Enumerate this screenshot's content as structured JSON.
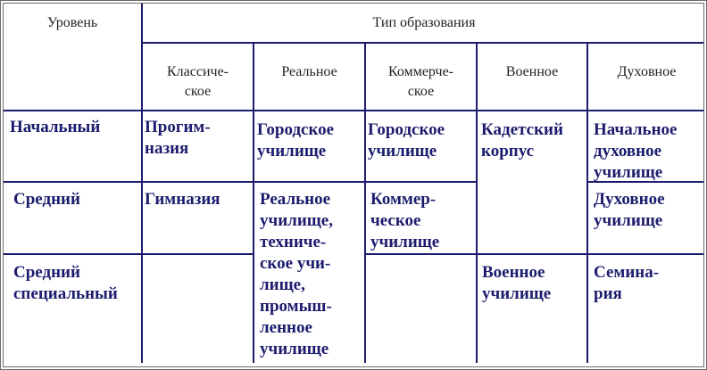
{
  "header": {
    "level": "Уровень",
    "type_of_education": "Тип образования",
    "types": [
      "Классиче-\nское",
      "Реальное",
      "Коммерче-\nское",
      "Военное",
      "Духовное"
    ]
  },
  "rows": [
    {
      "level": "Начальный",
      "classical": "Прогим-\nназия",
      "real": "Городское\nучилище",
      "commercial": "Городское\nучилище",
      "military": "Кадетский\nкорпус",
      "religious": "Начальное\nдуховное\nучилище"
    },
    {
      "level": "Средний",
      "classical": "Гимназия",
      "real": "Реальное\nучилище,\nтехниче-\nское учи-\nлище,\nпромыш-\nленное\nучилище",
      "commercial": "Коммер-\nческое\nучилище",
      "religious": "Духовное\nучилище"
    },
    {
      "level": "Средний\nспециальный",
      "military": "Военное\nучилище",
      "religious": "Семина-\nрия"
    }
  ]
}
